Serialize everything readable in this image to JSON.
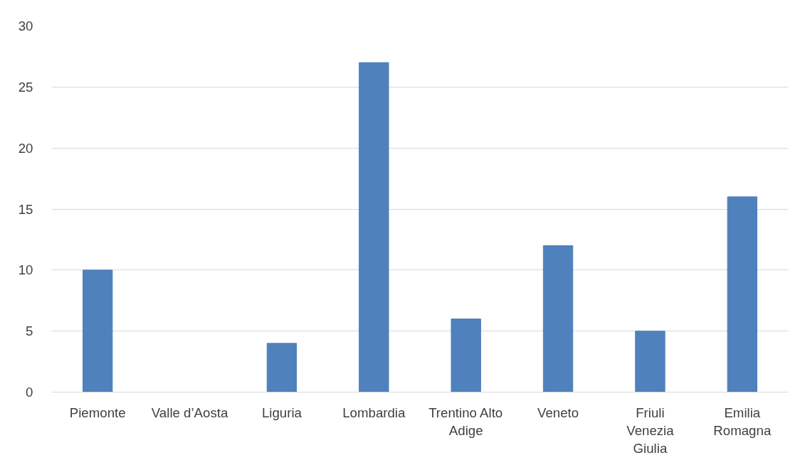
{
  "chart_data": {
    "type": "bar",
    "categories": [
      "Piemonte",
      "Valle d’Aosta",
      "Liguria",
      "Lombardia",
      "Trentino Alto Adige",
      "Veneto",
      "Friuli Venezia Giulia",
      "Emilia Romagna"
    ],
    "values": [
      10,
      0,
      4,
      27,
      6,
      12,
      5,
      16
    ],
    "color": "#4f81bd",
    "ylim": [
      0,
      30
    ],
    "yticks": [
      0,
      5,
      10,
      15,
      20,
      25,
      30
    ],
    "grid": "y"
  }
}
